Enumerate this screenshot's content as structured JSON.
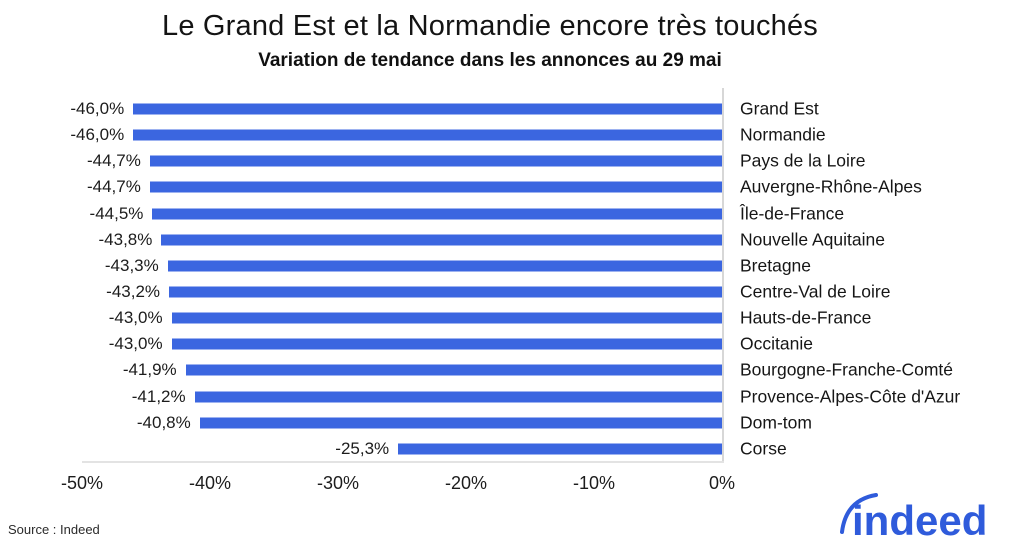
{
  "header": {
    "title": "Le Grand Est et la Normandie encore très touchés",
    "subtitle": "Variation de tendance dans les annonces au 29 mai"
  },
  "footer": {
    "source": "Source : Indeed",
    "logo_text": "indeed"
  },
  "colors": {
    "bar": "#3B66E0",
    "logo_blue": "#2F5BDB",
    "axis_line": "#D7D7D7",
    "text": "#1A1A1A"
  },
  "chart_data": {
    "type": "bar",
    "orientation": "horizontal",
    "title": "Le Grand Est et la Normandie encore très touchés",
    "subtitle": "Variation de tendance dans les annonces au 29 mai",
    "xlabel": "",
    "ylabel": "",
    "xlim": [
      -50,
      0
    ],
    "grid": false,
    "legend": "none",
    "bar_color": "#3B66E0",
    "x_ticks": [
      "-50%",
      "-40%",
      "-30%",
      "-20%",
      "-10%",
      "0%"
    ],
    "x_tick_values": [
      -50,
      -40,
      -30,
      -20,
      -10,
      0
    ],
    "categories": [
      "Grand Est",
      "Normandie",
      "Pays de la Loire",
      "Auvergne-Rhône-Alpes",
      "Île-de-France",
      "Nouvelle Aquitaine",
      "Bretagne",
      "Centre-Val de Loire",
      "Hauts-de-France",
      "Occitanie",
      "Bourgogne-Franche-Comté",
      "Provence-Alpes-Côte d'Azur",
      "Dom-tom",
      "Corse"
    ],
    "values": [
      -46.0,
      -46.0,
      -44.7,
      -44.7,
      -44.5,
      -43.8,
      -43.3,
      -43.2,
      -43.0,
      -43.0,
      -41.9,
      -41.2,
      -40.8,
      -25.3
    ],
    "value_labels": [
      "-46,0%",
      "-46,0%",
      "-44,7%",
      "-44,7%",
      "-44,5%",
      "-43,8%",
      "-43,3%",
      "-43,2%",
      "-43,0%",
      "-43,0%",
      "-41,9%",
      "-41,2%",
      "-40,8%",
      "-25,3%"
    ]
  }
}
